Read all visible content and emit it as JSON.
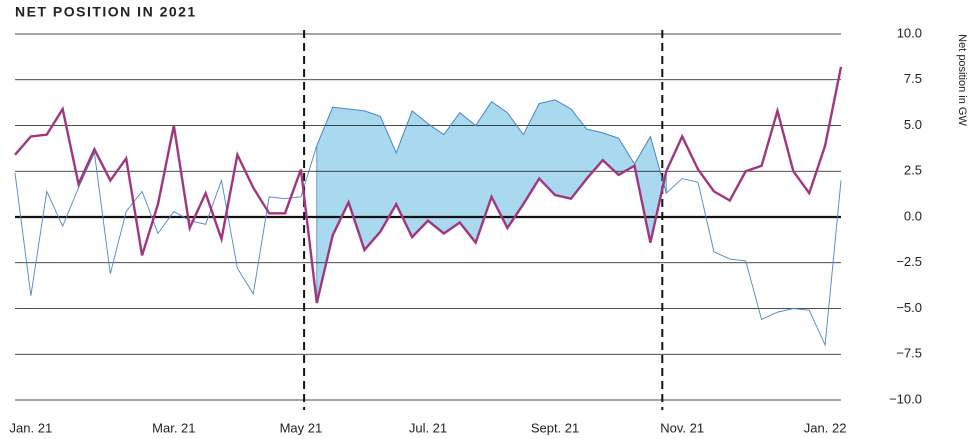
{
  "chart_data": {
    "type": "line",
    "title": "NET POSITION IN 2021",
    "y_axis_label": "Net position in GW",
    "categories": [
      null,
      "Jan. 21",
      null,
      null,
      null,
      null,
      null,
      null,
      null,
      null,
      "Mar. 21",
      null,
      null,
      null,
      null,
      null,
      null,
      null,
      "May 21",
      null,
      null,
      null,
      null,
      null,
      null,
      null,
      "Jul. 21",
      null,
      null,
      null,
      null,
      null,
      null,
      null,
      "Sept. 21",
      null,
      null,
      null,
      null,
      null,
      null,
      null,
      "Nov. 21",
      null,
      null,
      null,
      null,
      null,
      null,
      null,
      null,
      "Jan. 22",
      null
    ],
    "series": [
      {
        "color": "#4d86c6",
        "values": [
          2.4,
          -4.3,
          1.4,
          -0.5,
          1.6,
          3.5,
          -3.1,
          0.3,
          1.4,
          -0.9,
          0.3,
          -0.2,
          -0.4,
          2.0,
          -2.8,
          -4.2,
          1.1,
          1.0,
          1.1,
          3.9,
          6.0,
          5.9,
          5.8,
          5.5,
          3.5,
          5.8,
          5.1,
          4.5,
          5.7,
          5.0,
          6.3,
          5.7,
          4.5,
          6.2,
          6.4,
          5.9,
          4.8,
          4.6,
          4.3,
          2.9,
          4.4,
          1.3,
          2.1,
          1.9,
          -1.9,
          -2.3,
          -2.4,
          -5.6,
          -5.2,
          -5.0,
          -5.1,
          -7.0,
          2.0
        ]
      },
      {
        "color": "#a0377e",
        "values": [
          3.4,
          4.4,
          4.5,
          5.9,
          1.8,
          3.7,
          2.0,
          3.2,
          -2.1,
          0.7,
          5.0,
          -0.6,
          1.3,
          -1.2,
          3.4,
          1.6,
          0.2,
          0.2,
          2.6,
          -4.7,
          -1.0,
          0.8,
          -1.8,
          -0.8,
          0.7,
          -1.1,
          -0.2,
          -0.9,
          -0.3,
          -1.4,
          1.1,
          -0.6,
          0.7,
          2.1,
          1.2,
          1.0,
          2.1,
          3.1,
          2.3,
          2.8,
          -1.4,
          2.5,
          4.4,
          2.6,
          1.4,
          0.9,
          2.5,
          2.8,
          5.8,
          2.5,
          1.3,
          3.9,
          8.2
        ]
      }
    ],
    "shade_range": [
      19,
      41
    ],
    "shade_color": "#a8d9ee",
    "vlines": [
      18.2,
      40.75
    ],
    "ylim": [
      -10,
      10
    ],
    "yticks": [
      {
        "value": 10,
        "label": "10.0"
      },
      7.5,
      {
        "value": 5,
        "label": "5.0"
      },
      2.5,
      {
        "value": 0,
        "label": "0.0"
      },
      {
        "value": -2.5,
        "label": "−2.5"
      },
      {
        "value": -5,
        "label": "−5.0"
      },
      {
        "value": -7.5,
        "label": "−7.5"
      },
      {
        "value": -10,
        "label": "−10.0"
      }
    ],
    "grid": true,
    "y_axis_side": "right"
  }
}
